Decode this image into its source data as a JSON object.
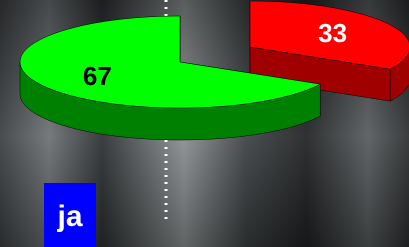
{
  "chart_data": {
    "type": "pie",
    "categories": [
      "ja",
      null
    ],
    "values": [
      67,
      33
    ],
    "colors": [
      "#00ff00",
      "#ff0000"
    ],
    "side_colors": [
      "#008000",
      "#a00000"
    ]
  }
}
